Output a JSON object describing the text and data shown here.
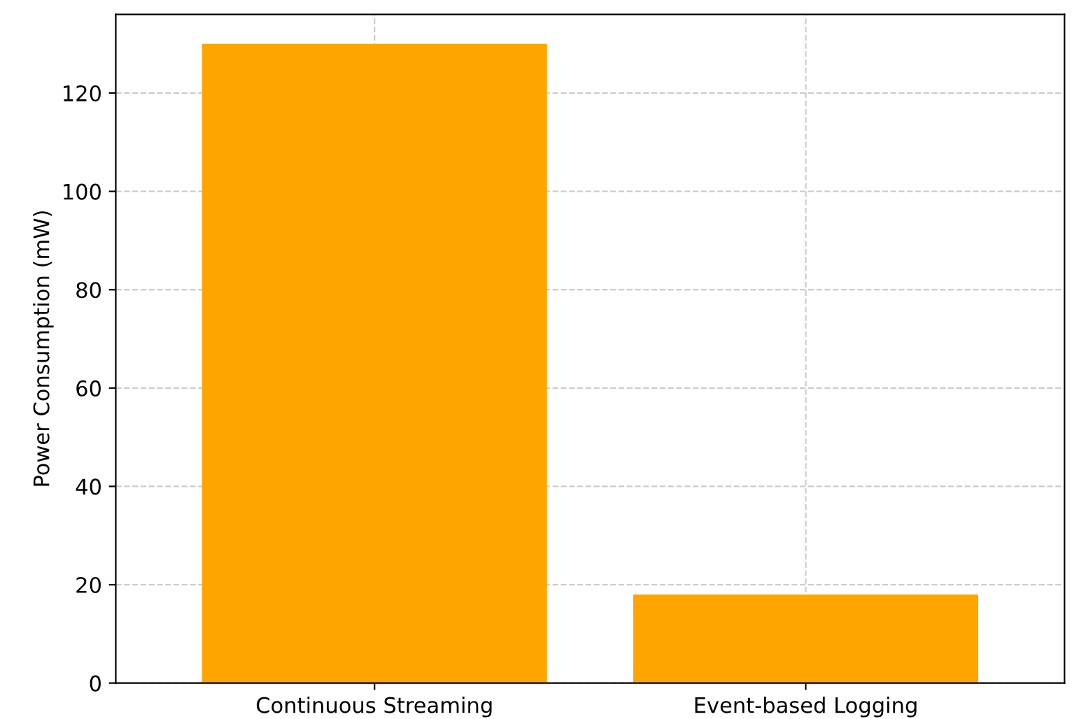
{
  "chart_data": {
    "type": "bar",
    "ylabel": "Power Consumption (mW)",
    "categories": [
      "Continuous Streaming",
      "Event-based Logging"
    ],
    "values": [
      130,
      18
    ],
    "color": "#ffa500",
    "ylim": [
      0,
      136
    ],
    "yticks": [
      0,
      20,
      40,
      60,
      80,
      100,
      120
    ],
    "grid": true
  }
}
